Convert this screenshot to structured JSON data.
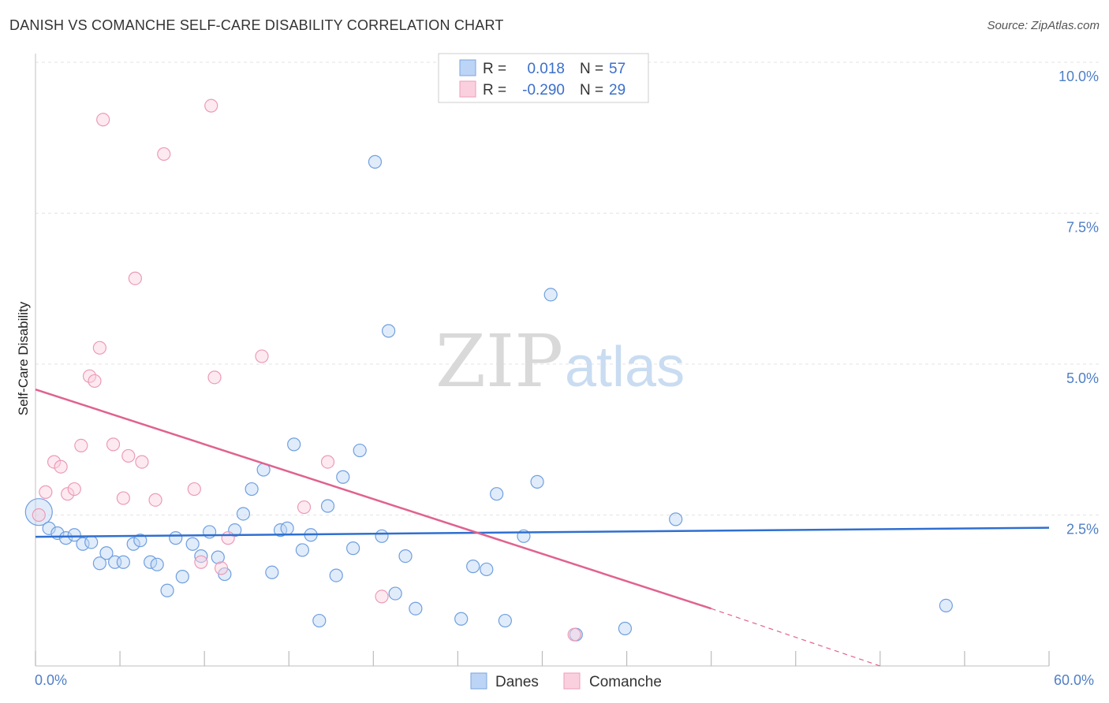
{
  "header": {
    "title": "DANISH VS COMANCHE SELF-CARE DISABILITY CORRELATION CHART",
    "source": "Source: ZipAtlas.com"
  },
  "watermark": {
    "zip": "ZIP",
    "atlas": "atlas"
  },
  "legend": {
    "rows": [
      {
        "r_label": "R =",
        "r_value": "0.018",
        "n_label": "N =",
        "n_value": "57"
      },
      {
        "r_label": "R =",
        "r_value": "-0.290",
        "n_label": "N =",
        "n_value": "29"
      }
    ]
  },
  "bottom_legend": {
    "danes": "Danes",
    "comanche": "Comanche"
  },
  "chart_data": {
    "type": "scatter",
    "title": "DANISH VS COMANCHE SELF-CARE DISABILITY CORRELATION CHART",
    "xlabel": "",
    "ylabel": "Self-Care Disability",
    "xlim": [
      0,
      60
    ],
    "ylim": [
      0,
      10
    ],
    "x_tick_labels": [
      "0.0%",
      "60.0%"
    ],
    "y_tick_labels": [
      "2.5%",
      "5.0%",
      "7.5%",
      "10.0%"
    ],
    "y_ticks": [
      2.5,
      5.0,
      7.5,
      10.0
    ],
    "grid": true,
    "legend_position": "top-center",
    "colors": {
      "danes": "#8ab4e8",
      "comanche": "#f2a7c0",
      "danes_line": "#2f6fd0",
      "comanche_line": "#e0628f"
    },
    "series": [
      {
        "name": "Danes",
        "r": 0.018,
        "n": 57,
        "trend": {
          "x0": 0,
          "y0": 2.14,
          "x1": 60,
          "y1": 2.29
        },
        "points": [
          [
            0.2,
            2.55
          ],
          [
            0.8,
            2.28
          ],
          [
            1.3,
            2.2
          ],
          [
            1.8,
            2.12
          ],
          [
            2.3,
            2.17
          ],
          [
            2.8,
            2.02
          ],
          [
            3.3,
            2.05
          ],
          [
            3.8,
            1.7
          ],
          [
            4.2,
            1.87
          ],
          [
            4.7,
            1.72
          ],
          [
            5.2,
            1.72
          ],
          [
            5.8,
            2.02
          ],
          [
            6.2,
            2.08
          ],
          [
            6.8,
            1.72
          ],
          [
            7.2,
            1.68
          ],
          [
            7.8,
            1.25
          ],
          [
            8.3,
            2.12
          ],
          [
            8.7,
            1.48
          ],
          [
            9.3,
            2.02
          ],
          [
            9.8,
            1.82
          ],
          [
            10.3,
            2.22
          ],
          [
            10.8,
            1.8
          ],
          [
            11.2,
            1.52
          ],
          [
            11.8,
            2.25
          ],
          [
            12.3,
            2.52
          ],
          [
            12.8,
            2.93
          ],
          [
            13.5,
            3.25
          ],
          [
            14.0,
            1.55
          ],
          [
            14.5,
            2.25
          ],
          [
            14.9,
            2.28
          ],
          [
            15.3,
            3.67
          ],
          [
            15.8,
            1.92
          ],
          [
            16.3,
            2.17
          ],
          [
            16.8,
            0.75
          ],
          [
            17.3,
            2.65
          ],
          [
            17.8,
            1.5
          ],
          [
            18.2,
            3.13
          ],
          [
            18.8,
            1.95
          ],
          [
            19.2,
            3.57
          ],
          [
            20.1,
            8.35
          ],
          [
            20.5,
            2.15
          ],
          [
            20.9,
            5.55
          ],
          [
            21.3,
            1.2
          ],
          [
            21.9,
            1.82
          ],
          [
            22.5,
            0.95
          ],
          [
            25.2,
            0.78
          ],
          [
            25.9,
            1.65
          ],
          [
            26.7,
            1.6
          ],
          [
            27.3,
            2.85
          ],
          [
            27.8,
            0.75
          ],
          [
            28.9,
            2.15
          ],
          [
            29.7,
            3.05
          ],
          [
            30.5,
            6.15
          ],
          [
            32.0,
            0.52
          ],
          [
            34.9,
            0.62
          ],
          [
            37.9,
            2.43
          ],
          [
            53.9,
            1.0
          ]
        ]
      },
      {
        "name": "Comanche",
        "r": -0.29,
        "n": 29,
        "trend": {
          "x0": 0,
          "y0": 4.58,
          "x1": 40,
          "y1": 0.95
        },
        "trend_dashed": {
          "x0": 40,
          "y0": 0.95,
          "x1": 50,
          "y1": 0.0
        },
        "points": [
          [
            0.2,
            2.5
          ],
          [
            0.6,
            2.88
          ],
          [
            1.1,
            3.38
          ],
          [
            1.5,
            3.3
          ],
          [
            1.9,
            2.85
          ],
          [
            2.3,
            2.93
          ],
          [
            2.7,
            3.65
          ],
          [
            3.2,
            4.8
          ],
          [
            3.5,
            4.72
          ],
          [
            3.8,
            5.27
          ],
          [
            4.0,
            9.05
          ],
          [
            4.6,
            3.67
          ],
          [
            5.2,
            2.78
          ],
          [
            5.5,
            3.48
          ],
          [
            5.9,
            6.42
          ],
          [
            6.3,
            3.38
          ],
          [
            7.1,
            2.75
          ],
          [
            7.6,
            8.48
          ],
          [
            9.4,
            2.93
          ],
          [
            9.8,
            1.72
          ],
          [
            10.4,
            9.28
          ],
          [
            10.6,
            4.78
          ],
          [
            11.0,
            1.62
          ],
          [
            11.4,
            2.12
          ],
          [
            13.4,
            5.13
          ],
          [
            15.9,
            2.63
          ],
          [
            17.3,
            3.38
          ],
          [
            20.5,
            1.15
          ],
          [
            31.9,
            0.52
          ]
        ]
      }
    ]
  }
}
